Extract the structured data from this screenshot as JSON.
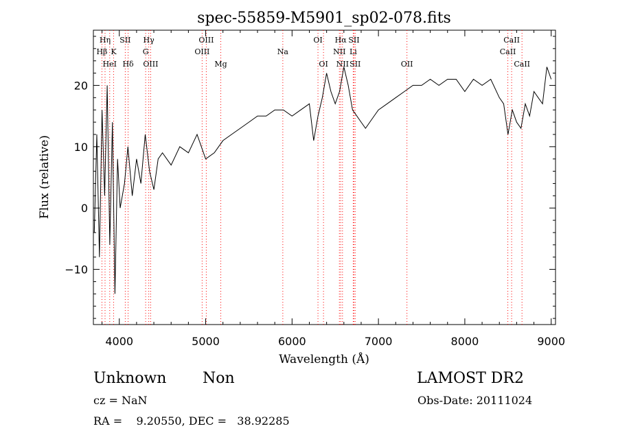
{
  "chart_data": {
    "type": "line",
    "title": "spec-55859-M5901_sp02-078.fits",
    "xlabel": "Wavelength (Å)",
    "ylabel": "Flux (relative)",
    "xlim": [
      3700,
      9050
    ],
    "ylim": [
      -19,
      29
    ],
    "xticks": [
      4000,
      5000,
      6000,
      7000,
      8000,
      9000
    ],
    "yticks": [
      -10,
      0,
      10,
      20
    ],
    "grid": false,
    "series": [
      {
        "x": [
          3710,
          3740,
          3770,
          3800,
          3830,
          3860,
          3890,
          3920,
          3950,
          3980,
          4010,
          4060,
          4100,
          4150,
          4200,
          4250,
          4300,
          4350,
          4400,
          4450,
          4500,
          4600,
          4700,
          4800,
          4900,
          5000,
          5100,
          5200,
          5300,
          5400,
          5500,
          5600,
          5700,
          5800,
          5900,
          6000,
          6100,
          6200,
          6250,
          6300,
          6350,
          6400,
          6450,
          6500,
          6550,
          6600,
          6650,
          6700,
          6750,
          6800,
          6850,
          6900,
          6950,
          7000,
          7100,
          7200,
          7300,
          7400,
          7500,
          7600,
          7700,
          7800,
          7900,
          8000,
          8100,
          8200,
          8300,
          8400,
          8450,
          8500,
          8550,
          8600,
          8650,
          8700,
          8750,
          8800,
          8850,
          8900,
          8950,
          9000
        ],
        "y": [
          -4,
          12,
          -8,
          16,
          2,
          20,
          -6,
          14,
          -14,
          8,
          0,
          4,
          10,
          2,
          8,
          4,
          12,
          6,
          3,
          8,
          9,
          7,
          10,
          9,
          12,
          8,
          9,
          11,
          12,
          13,
          14,
          15,
          15,
          16,
          16,
          15,
          16,
          17,
          11,
          15,
          18,
          22,
          19,
          17,
          19,
          23,
          20,
          16,
          15,
          14,
          13,
          14,
          15,
          16,
          17,
          18,
          19,
          20,
          20,
          21,
          20,
          21,
          21,
          19,
          21,
          20,
          21,
          18,
          17,
          12,
          16,
          14,
          13,
          17,
          15,
          19,
          18,
          17,
          23,
          21
        ]
      }
    ],
    "lines": [
      {
        "label": "Hη",
        "x": 3835,
        "row": 0
      },
      {
        "label": "Hβ",
        "x": 3799,
        "row": 1
      },
      {
        "label": "K",
        "x": 3934,
        "row": 1
      },
      {
        "label": "HeI",
        "x": 3889,
        "row": 2
      },
      {
        "label": "SII",
        "x": 4069,
        "row": 0
      },
      {
        "label": "Hδ",
        "x": 4102,
        "row": 2
      },
      {
        "label": "Hγ",
        "x": 4341,
        "row": 0
      },
      {
        "label": "G",
        "x": 4305,
        "row": 1
      },
      {
        "label": "OIII",
        "x": 4363,
        "row": 2
      },
      {
        "label": "OIII",
        "x": 5007,
        "row": 0
      },
      {
        "label": "OIII",
        "x": 4959,
        "row": 1
      },
      {
        "label": "Mg",
        "x": 5175,
        "row": 2
      },
      {
        "label": "Na",
        "x": 5893,
        "row": 1
      },
      {
        "label": "OI",
        "x": 6300,
        "row": 0
      },
      {
        "label": "OI",
        "x": 6364,
        "row": 2
      },
      {
        "label": "Hα",
        "x": 6563,
        "row": 0
      },
      {
        "label": "SII",
        "x": 6717,
        "row": 0
      },
      {
        "label": "NII",
        "x": 6548,
        "row": 1
      },
      {
        "label": "Li",
        "x": 6708,
        "row": 1
      },
      {
        "label": "NII",
        "x": 6584,
        "row": 2
      },
      {
        "label": "SII",
        "x": 6731,
        "row": 2
      },
      {
        "label": "OII",
        "x": 7330,
        "row": 2
      },
      {
        "label": "CaII",
        "x": 8542,
        "row": 0
      },
      {
        "label": "CaII",
        "x": 8498,
        "row": 1
      },
      {
        "label": "CaII",
        "x": 8662,
        "row": 2
      }
    ],
    "line_color": "#ff0000"
  },
  "info": {
    "class_label": "Unknown",
    "subclass_label": "Non",
    "survey": "LAMOST DR2",
    "cz": "cz = NaN",
    "obs_date": "Obs-Date: 20111024",
    "radec": "RA =    9.20550, DEC =   38.92285"
  }
}
